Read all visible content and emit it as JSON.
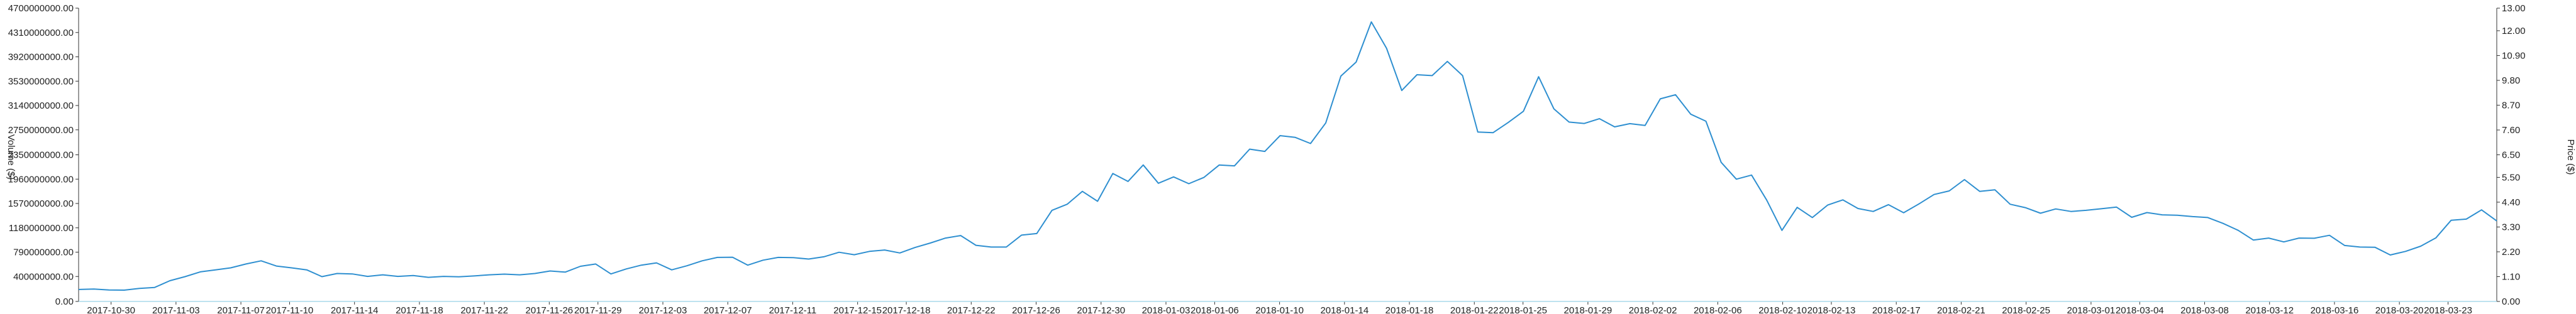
{
  "chart_data": {
    "type": "line",
    "title": "",
    "y_left": {
      "label": "Volume ($)",
      "range": [
        0,
        4700000000
      ],
      "ticks": [
        "0.00",
        "400000000.00",
        "790000000.00",
        "1180000000.00",
        "1570000000.00",
        "1960000000.00",
        "2350000000.00",
        "2750000000.00",
        "3140000000.00",
        "3530000000.00",
        "3920000000.00",
        "4310000000.00",
        "4700000000.00"
      ],
      "tick_values": [
        0,
        400000000,
        790000000,
        1180000000,
        1570000000,
        1960000000,
        2350000000,
        2750000000,
        3140000000,
        3530000000,
        3920000000,
        4310000000,
        4700000000
      ]
    },
    "y_right": {
      "label": "Price ($)",
      "range": [
        0,
        13
      ],
      "ticks": [
        "0.00",
        "1.10",
        "2.20",
        "3.30",
        "4.40",
        "5.50",
        "6.50",
        "7.60",
        "8.70",
        "9.80",
        "10.90",
        "12.00",
        "13.00"
      ],
      "tick_values": [
        0,
        1.1,
        2.2,
        3.3,
        4.4,
        5.5,
        6.5,
        7.6,
        8.7,
        9.8,
        10.9,
        12.0,
        13.0
      ]
    },
    "x": {
      "start": "2017-10-28",
      "end": "2018-03-26",
      "ticks": [
        "2017-10-30",
        "2017-11-03",
        "2017-11-07",
        "2017-11-10",
        "2017-11-14",
        "2017-11-18",
        "2017-11-22",
        "2017-11-26",
        "2017-11-29",
        "2017-12-03",
        "2017-12-07",
        "2017-12-11",
        "2017-12-15",
        "2017-12-18",
        "2017-12-22",
        "2017-12-26",
        "2017-12-30",
        "2018-01-03",
        "2018-01-06",
        "2018-01-10",
        "2018-01-14",
        "2018-01-18",
        "2018-01-22",
        "2018-01-25",
        "2018-01-29",
        "2018-02-02",
        "2018-02-06",
        "2018-02-10",
        "2018-02-13",
        "2018-02-17",
        "2018-02-21",
        "2018-02-25",
        "2018-03-01",
        "2018-03-04",
        "2018-03-08",
        "2018-03-12",
        "2018-03-16",
        "2018-03-20",
        "2018-03-23"
      ]
    },
    "grid": false,
    "series": [
      {
        "name": "",
        "axis": "right",
        "color": "#2e8fd0",
        "values": [
          0.53,
          0.55,
          0.51,
          0.5,
          0.58,
          0.62,
          0.92,
          1.1,
          1.31,
          1.4,
          1.49,
          1.66,
          1.8,
          1.57,
          1.49,
          1.4,
          1.1,
          1.24,
          1.22,
          1.11,
          1.18,
          1.11,
          1.15,
          1.07,
          1.11,
          1.09,
          1.13,
          1.18,
          1.21,
          1.18,
          1.24,
          1.35,
          1.3,
          1.56,
          1.66,
          1.22,
          1.44,
          1.61,
          1.71,
          1.4,
          1.58,
          1.8,
          1.95,
          1.96,
          1.61,
          1.83,
          1.95,
          1.94,
          1.88,
          1.98,
          2.18,
          2.07,
          2.22,
          2.28,
          2.15,
          2.39,
          2.59,
          2.81,
          2.92,
          2.49,
          2.41,
          2.41,
          2.94,
          3.01,
          4.04,
          4.31,
          4.88,
          4.44,
          5.67,
          5.32,
          6.05,
          5.24,
          5.52,
          5.22,
          5.5,
          6.05,
          6.01,
          6.75,
          6.65,
          7.35,
          7.27,
          7.0,
          7.91,
          9.99,
          10.61,
          12.39,
          11.22,
          9.35,
          10.05,
          10.01,
          10.64,
          10.01,
          7.51,
          7.48,
          7.93,
          8.43,
          9.96,
          8.54,
          7.95,
          7.89,
          8.1,
          7.74,
          7.88,
          7.8,
          8.98,
          9.16,
          8.3,
          7.99,
          6.17,
          5.42,
          5.6,
          4.49,
          3.15,
          4.17,
          3.72,
          4.27,
          4.5,
          4.12,
          3.99,
          4.29,
          3.93,
          4.32,
          4.74,
          4.9,
          5.4,
          4.88,
          4.95,
          4.31,
          4.16,
          3.91,
          4.1,
          3.99,
          4.04,
          4.11,
          4.18,
          3.73,
          3.94,
          3.84,
          3.82,
          3.76,
          3.72,
          3.46,
          3.15,
          2.72,
          2.81,
          2.64,
          2.81,
          2.8,
          2.93,
          2.48,
          2.41,
          2.4,
          2.06,
          2.22,
          2.45,
          2.82,
          3.6,
          3.65,
          4.06,
          3.57
        ]
      },
      {
        "name": "",
        "axis": "left",
        "color": "#a8d8ea",
        "values": [
          0,
          0,
          0,
          0,
          0,
          0,
          0,
          0,
          0,
          0,
          0,
          0,
          0,
          0,
          0,
          0,
          0,
          0,
          0,
          0,
          0,
          0,
          0,
          0,
          0,
          0,
          0,
          0,
          0,
          0,
          0,
          0,
          0,
          0,
          0,
          0,
          0,
          0,
          0,
          0,
          0,
          0,
          0,
          0,
          0,
          0,
          0,
          0,
          0,
          0,
          0,
          0,
          0,
          0,
          0,
          0,
          0,
          0,
          0,
          0,
          0,
          0,
          0,
          0,
          0,
          0,
          0,
          0,
          0,
          0,
          0,
          0,
          0,
          0,
          0,
          0,
          0,
          0,
          0,
          0,
          0,
          0,
          0,
          0,
          0,
          0,
          0,
          0,
          0,
          0,
          0,
          0,
          0,
          0,
          0,
          0,
          0,
          0,
          0,
          0,
          0,
          0,
          0,
          0,
          0,
          0,
          0,
          0,
          0,
          0,
          0,
          0,
          0,
          0,
          0,
          0,
          0,
          0,
          0,
          0,
          0,
          0,
          0,
          0,
          0,
          0,
          0,
          0,
          0,
          0,
          0,
          0,
          0,
          0,
          0,
          0,
          0,
          0,
          0,
          0,
          0,
          0,
          0,
          0,
          0,
          0,
          0,
          0,
          0,
          0,
          0,
          0,
          0,
          0,
          0,
          0,
          0,
          0,
          0,
          0,
          0,
          0,
          0,
          0,
          0,
          0,
          0,
          0
        ]
      }
    ]
  }
}
